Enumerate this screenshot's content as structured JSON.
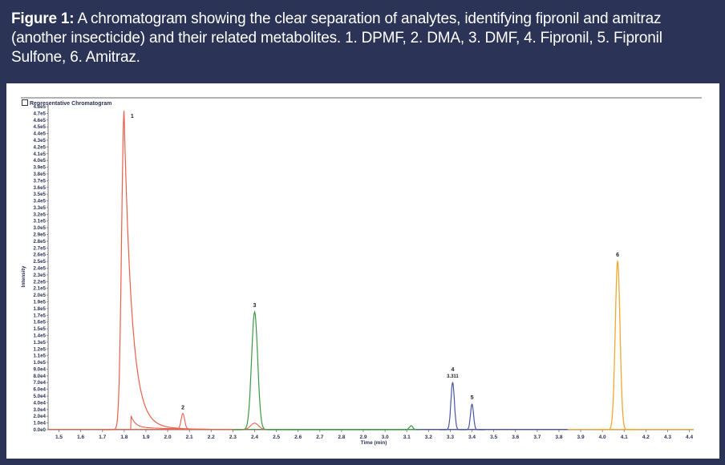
{
  "caption": {
    "label": "Figure 1:",
    "text": " A chromatogram showing the clear separation of analytes, identifying fipronil and amitraz (another insecticide) and their related metabolites. 1. DPMF, 2. DMA, 3. DMF, 4. Fipronil, 5. Fipronil Sulfone, 6. Amitraz."
  },
  "chart_header": {
    "icon": "expand-box-icon",
    "title": "Representative Chromatogram"
  },
  "colors": {
    "frame": "#2b3356",
    "dpmf_dma": "#e8604a",
    "dmf": "#3a9a44",
    "fipronil": "#4a56a8",
    "amitraz": "#f0a830"
  },
  "chart_data": {
    "type": "line",
    "title": "Representative Chromatogram",
    "xlabel": "Time (min)",
    "ylabel": "Intensity",
    "xlim": [
      1.45,
      4.42
    ],
    "ylim": [
      0,
      480000
    ],
    "grid": false,
    "legend": "none",
    "x_ticks": [
      "1.5",
      "1.6",
      "1.7",
      "1.8",
      "1.9",
      "2.0",
      "2.1",
      "2.2",
      "2.3",
      "2.4",
      "2.5",
      "2.6",
      "2.7",
      "2.8",
      "2.9",
      "3.0",
      "3.1",
      "3.2",
      "3.3",
      "3.4",
      "3.5",
      "3.6",
      "3.7",
      "3.8",
      "3.9",
      "4.0",
      "4.1",
      "4.2",
      "4.3",
      "4.4"
    ],
    "y_ticks": [
      "0.0e0",
      "1.0e4",
      "2.0e4",
      "3.0e4",
      "4.0e4",
      "5.0e4",
      "6.0e4",
      "7.0e4",
      "8.0e4",
      "9.0e4",
      "1.0e5",
      "1.1e5",
      "1.2e5",
      "1.3e5",
      "1.4e5",
      "1.5e5",
      "1.6e5",
      "1.7e5",
      "1.8e5",
      "1.9e5",
      "2.0e5",
      "2.1e5",
      "2.2e5",
      "2.3e5",
      "2.4e5",
      "2.5e5",
      "2.6e5",
      "2.7e5",
      "2.8e5",
      "2.9e5",
      "3.0e5",
      "3.1e5",
      "3.2e5",
      "3.3e5",
      "3.4e5",
      "3.5e5",
      "3.6e5",
      "3.7e5",
      "3.8e5",
      "3.9e5",
      "4.0e5",
      "4.1e5",
      "4.2e5",
      "4.3e5",
      "4.4e5",
      "4.5e5",
      "4.6e5",
      "4.7e5",
      "4.8e5"
    ],
    "peaks": [
      {
        "label": "1",
        "name": "DPMF",
        "rt": 1.8,
        "intensity": 475000,
        "color": "#e8604a"
      },
      {
        "label": "2",
        "name": "DMA",
        "rt": 2.07,
        "intensity": 23000,
        "color": "#e8604a"
      },
      {
        "label": "3",
        "name": "DMF",
        "rt": 2.4,
        "intensity": 175000,
        "color": "#3a9a44"
      },
      {
        "label": "4",
        "name": "Fipronil",
        "rt": 3.311,
        "intensity": 70000,
        "color": "#4a56a8",
        "annotation": "3.311"
      },
      {
        "label": "5",
        "name": "Fipronil Sulfone",
        "rt": 3.4,
        "intensity": 38000,
        "color": "#4a56a8"
      },
      {
        "label": "6",
        "name": "Amitraz",
        "rt": 4.07,
        "intensity": 250000,
        "color": "#f0a830"
      }
    ],
    "series": [
      {
        "name": "DPMF/DMA trace",
        "color": "#e8604a",
        "minor_features": [
          {
            "rt": 1.83,
            "intensity": 18000,
            "note": "secondary trace step"
          },
          {
            "rt": 2.4,
            "intensity": 10000
          }
        ]
      },
      {
        "name": "DMF trace",
        "color": "#3a9a44",
        "minor_features": [
          {
            "rt": 3.12,
            "intensity": 6000
          }
        ]
      },
      {
        "name": "Fipronil trace",
        "color": "#4a56a8"
      },
      {
        "name": "Amitraz trace",
        "color": "#f0a830"
      }
    ]
  }
}
